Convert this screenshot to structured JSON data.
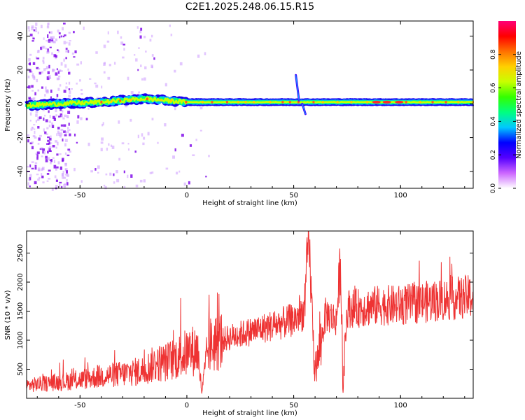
{
  "title": "C2E1.2025.248.06.15.R15",
  "chart_data": [
    {
      "type": "heatmap",
      "xlabel": "Height of straight line (km)",
      "ylabel": "Frequency (Hz)",
      "xlim": [
        -75,
        134
      ],
      "ylim": [
        -50,
        49
      ],
      "x_ticks": [
        -50,
        0,
        50,
        100
      ],
      "y_ticks": [
        -40,
        -20,
        0,
        20,
        40
      ],
      "colorbar": {
        "label": "Normalized spectral amplitude",
        "range": [
          0.0,
          1.0
        ],
        "ticks": [
          "0.0",
          "0.2",
          "0.4",
          "0.6",
          "0.8"
        ],
        "colors": [
          "#ffffff",
          "#cc66ff",
          "#5500ff",
          "#0000ff",
          "#00c8ff",
          "#00ff80",
          "#33ff00",
          "#c8ff00",
          "#ffd000",
          "#ff7000",
          "#ff0000",
          "#ff0077"
        ]
      },
      "main_band_center_hz": [
        {
          "x": -75,
          "y": -1
        },
        {
          "x": -60,
          "y": 0
        },
        {
          "x": -40,
          "y": 1
        },
        {
          "x": -20,
          "y": 3
        },
        {
          "x": -10,
          "y": 2
        },
        {
          "x": 0,
          "y": 1
        },
        {
          "x": 50,
          "y": 1
        },
        {
          "x": 100,
          "y": 1
        },
        {
          "x": 134,
          "y": 1
        }
      ],
      "features": [
        {
          "x": 51,
          "y_from": 17,
          "y_to": 2
        },
        {
          "x": 54,
          "y_from": 0,
          "y_to": -6
        }
      ]
    },
    {
      "type": "line",
      "xlabel": "Height of straight line (km)",
      "ylabel": "SNR (10 * v/v)",
      "xlim": [
        -75,
        134
      ],
      "ylim": [
        0,
        2880
      ],
      "x_ticks": [
        -50,
        0,
        50,
        100
      ],
      "y_ticks": [
        500,
        1000,
        1500,
        2000,
        2500
      ],
      "color": "#ee3333",
      "series": [
        {
          "x": [
            -75,
            -60,
            -50,
            -40,
            -30,
            -20,
            -15,
            -10,
            -5,
            0,
            5,
            7,
            10,
            20,
            30,
            40,
            50,
            55,
            57,
            60,
            65,
            70,
            72,
            73,
            75,
            80,
            90,
            100,
            110,
            120,
            134
          ],
          "y": [
            220,
            280,
            320,
            380,
            420,
            480,
            600,
            620,
            700,
            780,
            850,
            100,
            900,
            1050,
            1150,
            1250,
            1350,
            1500,
            2800,
            400,
            1450,
            1350,
            2400,
            80,
            1550,
            1550,
            1600,
            1600,
            1650,
            1700,
            1750
          ]
        }
      ]
    }
  ]
}
